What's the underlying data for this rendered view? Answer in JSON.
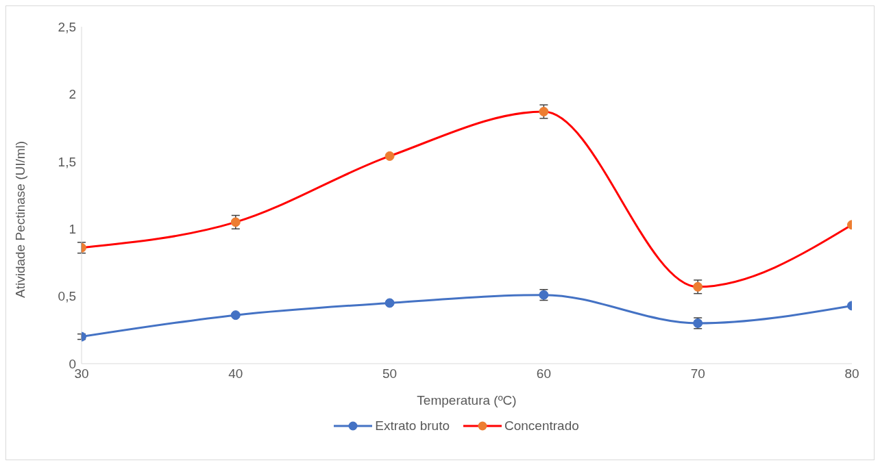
{
  "chart_data": {
    "type": "line",
    "xlabel": "Temperatura (ºC)",
    "ylabel": "Atividade Pectinase (UI/ml)",
    "x": [
      30,
      40,
      50,
      60,
      70,
      80
    ],
    "series": [
      {
        "name": "Extrato bruto",
        "color": "#4472c4",
        "values": [
          0.2,
          0.36,
          0.45,
          0.51,
          0.3,
          0.43
        ],
        "errors": [
          0.02,
          null,
          null,
          0.04,
          0.04,
          null
        ]
      },
      {
        "name": "Concentrado",
        "color": "#ff0000",
        "colors": [
          "#ed7d31",
          "#ed7d31",
          "#ed7d31",
          "#ed7d31",
          "#ed7d31",
          "#ed7d31"
        ],
        "values": [
          0.86,
          1.05,
          1.54,
          1.87,
          0.57,
          1.03
        ],
        "errors": [
          0.04,
          0.05,
          null,
          0.05,
          0.05,
          null
        ]
      }
    ],
    "xlim": [
      30,
      80
    ],
    "xticks": [
      30,
      40,
      50,
      60,
      70,
      80
    ],
    "ylim": [
      0,
      2.5
    ],
    "yticks": [
      0,
      {
        "value": 0.5,
        "label": "0,5"
      },
      1,
      {
        "value": 1.5,
        "label": "1,5"
      },
      2,
      {
        "value": 2.5,
        "label": "2,5"
      }
    ],
    "legend": "bottom",
    "marker": "circle",
    "line_style": "solid"
  }
}
